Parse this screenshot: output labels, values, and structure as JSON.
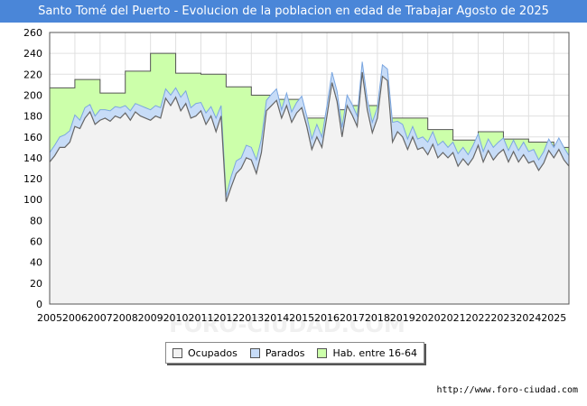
{
  "title": "Santo Tomé del Puerto - Evolucion de la poblacion en edad de Trabajar Agosto de 2025",
  "source": "http://www.foro-ciudad.com",
  "watermark": "FORO-CIUDAD.COM",
  "colors": {
    "title_bg": "#4a86d8",
    "ocupados_fill": "#f2f2f2",
    "ocupados_line": "#666666",
    "parados_fill": "#c7dcf7",
    "parados_line": "#7aa6e0",
    "hab_fill": "#ccffaa",
    "hab_line": "#555555",
    "grid": "#e0e0e0"
  },
  "chart_data": {
    "type": "area",
    "title": "Santo Tomé del Puerto - Evolucion de la poblacion en edad de Trabajar Agosto de 2025",
    "xlabel": "",
    "ylabel": "",
    "ylim": [
      0,
      260
    ],
    "xlim": [
      2005,
      2025.6
    ],
    "yticks": [
      0,
      20,
      40,
      60,
      80,
      100,
      120,
      140,
      160,
      180,
      200,
      220,
      240,
      260
    ],
    "xticks": [
      "2005",
      "2006",
      "2007",
      "2008",
      "2009",
      "2010",
      "2011",
      "2012",
      "2013",
      "2014",
      "2015",
      "2016",
      "2017",
      "2018",
      "2019",
      "2020",
      "2021",
      "2022",
      "2023",
      "2024",
      "2025"
    ],
    "grid": true,
    "legend_position": "bottom",
    "series": [
      {
        "name": "Hab. entre 16-64",
        "kind": "step",
        "x": [
          2005,
          2006,
          2007,
          2008,
          2009,
          2010,
          2011,
          2012,
          2013,
          2014,
          2015,
          2016,
          2017,
          2018,
          2019,
          2020,
          2021,
          2022,
          2023,
          2024,
          2025
        ],
        "values": [
          207,
          215,
          202,
          223,
          240,
          221,
          220,
          208,
          200,
          196,
          178,
          186,
          190,
          178,
          178,
          167,
          157,
          165,
          158,
          155,
          150
        ]
      },
      {
        "name": "Parados",
        "kind": "line",
        "x": [
          2005.0,
          2005.2,
          2005.4,
          2005.6,
          2005.8,
          2006.0,
          2006.2,
          2006.4,
          2006.6,
          2006.8,
          2007.0,
          2007.2,
          2007.4,
          2007.6,
          2007.8,
          2008.0,
          2008.2,
          2008.4,
          2008.6,
          2008.8,
          2009.0,
          2009.2,
          2009.4,
          2009.6,
          2009.8,
          2010.0,
          2010.2,
          2010.4,
          2010.6,
          2010.8,
          2011.0,
          2011.2,
          2011.4,
          2011.6,
          2011.8,
          2012.0,
          2012.2,
          2012.4,
          2012.6,
          2012.8,
          2013.0,
          2013.2,
          2013.4,
          2013.6,
          2013.8,
          2014.0,
          2014.2,
          2014.4,
          2014.6,
          2014.8,
          2015.0,
          2015.2,
          2015.4,
          2015.6,
          2015.8,
          2016.0,
          2016.2,
          2016.4,
          2016.6,
          2016.8,
          2017.0,
          2017.2,
          2017.4,
          2017.6,
          2017.8,
          2018.0,
          2018.2,
          2018.4,
          2018.6,
          2018.8,
          2019.0,
          2019.2,
          2019.4,
          2019.6,
          2019.8,
          2020.0,
          2020.2,
          2020.4,
          2020.6,
          2020.8,
          2021.0,
          2021.2,
          2021.4,
          2021.6,
          2021.8,
          2022.0,
          2022.2,
          2022.4,
          2022.6,
          2022.8,
          2023.0,
          2023.2,
          2023.4,
          2023.6,
          2023.8,
          2024.0,
          2024.2,
          2024.4,
          2024.6,
          2024.8,
          2025.0,
          2025.2,
          2025.4,
          2025.6
        ],
        "values": [
          145,
          152,
          160,
          162,
          166,
          181,
          176,
          188,
          191,
          180,
          186,
          186,
          185,
          189,
          188,
          190,
          185,
          192,
          190,
          188,
          186,
          190,
          188,
          206,
          200,
          207,
          198,
          204,
          188,
          192,
          193,
          183,
          189,
          178,
          190,
          103,
          122,
          137,
          140,
          152,
          150,
          138,
          158,
          195,
          201,
          206,
          186,
          202,
          184,
          193,
          199,
          180,
          158,
          172,
          160,
          190,
          222,
          204,
          169,
          200,
          191,
          180,
          232,
          196,
          174,
          188,
          229,
          225,
          174,
          175,
          172,
          158,
          170,
          158,
          160,
          155,
          165,
          152,
          156,
          150,
          155,
          144,
          150,
          143,
          152,
          163,
          146,
          158,
          150,
          155,
          159,
          147,
          157,
          147,
          155,
          146,
          148,
          138,
          146,
          158,
          150,
          159,
          150,
          142
        ]
      },
      {
        "name": "Ocupados",
        "kind": "line",
        "x": [
          2005.0,
          2005.2,
          2005.4,
          2005.6,
          2005.8,
          2006.0,
          2006.2,
          2006.4,
          2006.6,
          2006.8,
          2007.0,
          2007.2,
          2007.4,
          2007.6,
          2007.8,
          2008.0,
          2008.2,
          2008.4,
          2008.6,
          2008.8,
          2009.0,
          2009.2,
          2009.4,
          2009.6,
          2009.8,
          2010.0,
          2010.2,
          2010.4,
          2010.6,
          2010.8,
          2011.0,
          2011.2,
          2011.4,
          2011.6,
          2011.8,
          2012.0,
          2012.2,
          2012.4,
          2012.6,
          2012.8,
          2013.0,
          2013.2,
          2013.4,
          2013.6,
          2013.8,
          2014.0,
          2014.2,
          2014.4,
          2014.6,
          2014.8,
          2015.0,
          2015.2,
          2015.4,
          2015.6,
          2015.8,
          2016.0,
          2016.2,
          2016.4,
          2016.6,
          2016.8,
          2017.0,
          2017.2,
          2017.4,
          2017.6,
          2017.8,
          2018.0,
          2018.2,
          2018.4,
          2018.6,
          2018.8,
          2019.0,
          2019.2,
          2019.4,
          2019.6,
          2019.8,
          2020.0,
          2020.2,
          2020.4,
          2020.6,
          2020.8,
          2021.0,
          2021.2,
          2021.4,
          2021.6,
          2021.8,
          2022.0,
          2022.2,
          2022.4,
          2022.6,
          2022.8,
          2023.0,
          2023.2,
          2023.4,
          2023.6,
          2023.8,
          2024.0,
          2024.2,
          2024.4,
          2024.6,
          2024.8,
          2025.0,
          2025.2,
          2025.4,
          2025.6
        ],
        "values": [
          136,
          142,
          150,
          150,
          155,
          170,
          168,
          178,
          184,
          172,
          176,
          178,
          175,
          180,
          178,
          183,
          176,
          184,
          180,
          178,
          176,
          180,
          178,
          197,
          190,
          198,
          185,
          192,
          178,
          180,
          185,
          172,
          180,
          165,
          180,
          98,
          112,
          125,
          130,
          140,
          138,
          125,
          145,
          185,
          190,
          195,
          178,
          190,
          174,
          183,
          188,
          170,
          148,
          160,
          150,
          180,
          212,
          194,
          160,
          190,
          181,
          170,
          222,
          186,
          164,
          178,
          218,
          214,
          155,
          165,
          160,
          148,
          160,
          148,
          150,
          143,
          153,
          140,
          145,
          140,
          145,
          132,
          139,
          133,
          140,
          152,
          136,
          147,
          138,
          144,
          148,
          136,
          146,
          136,
          143,
          135,
          137,
          128,
          135,
          147,
          140,
          148,
          138,
          132
        ]
      }
    ]
  }
}
